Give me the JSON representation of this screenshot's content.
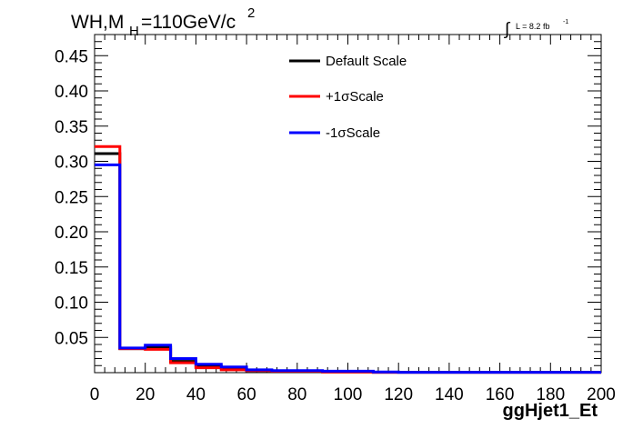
{
  "chart_data": {
    "type": "line",
    "title_main": "WH,M",
    "title_sub": "H",
    "title_rest": "=110GeV/c",
    "title_sup": "2",
    "lumi_integral": "∫",
    "lumi_text": "L = 8.2 fb",
    "lumi_sup": "-1",
    "xlabel": "ggHjet1_Et",
    "ylabel": "",
    "xlim": [
      0,
      200
    ],
    "ylim": [
      0,
      0.48
    ],
    "x_ticks": [
      "0",
      "20",
      "40",
      "60",
      "80",
      "100",
      "120",
      "140",
      "160",
      "180",
      "200"
    ],
    "x_tick_values": [
      0,
      20,
      40,
      60,
      80,
      100,
      120,
      140,
      160,
      180,
      200
    ],
    "y_ticks": [
      "0.05",
      "0.10",
      "0.15",
      "0.20",
      "0.25",
      "0.30",
      "0.35",
      "0.40",
      "0.45"
    ],
    "y_tick_values": [
      0.05,
      0.1,
      0.15,
      0.2,
      0.25,
      0.3,
      0.35,
      0.4,
      0.45
    ],
    "legend_position": "top-center",
    "bin_edges": [
      0,
      10,
      20,
      30,
      40,
      50,
      60,
      70,
      80,
      90,
      100,
      110,
      120,
      130,
      140,
      150,
      160,
      170,
      180,
      190,
      200
    ],
    "series": [
      {
        "name": "Default Scale",
        "color": "#000000",
        "values": [
          0.311,
          0.034,
          0.036,
          0.016,
          0.009,
          0.005,
          0.003,
          0.002,
          0.002,
          0.001,
          0.001,
          0.0005,
          0.0005,
          0.0005,
          0.0005,
          0.0005,
          0.0005,
          0.0005,
          0.0005,
          0.0005
        ]
      },
      {
        "name": "+1σScale",
        "color": "#ff0000",
        "values": [
          0.321,
          0.034,
          0.033,
          0.014,
          0.007,
          0.004,
          0.003,
          0.002,
          0.002,
          0.001,
          0.001,
          0.0005,
          0.0005,
          0.0005,
          0.0005,
          0.0005,
          0.0005,
          0.0005,
          0.0005,
          0.0005
        ]
      },
      {
        "name": "-1σScale",
        "color": "#0000ff",
        "values": [
          0.295,
          0.035,
          0.039,
          0.02,
          0.012,
          0.008,
          0.004,
          0.003,
          0.003,
          0.002,
          0.002,
          0.001,
          0.0005,
          0.0005,
          0.0005,
          0.0005,
          0.0005,
          0.0005,
          0.0005,
          0.0005
        ]
      }
    ]
  }
}
